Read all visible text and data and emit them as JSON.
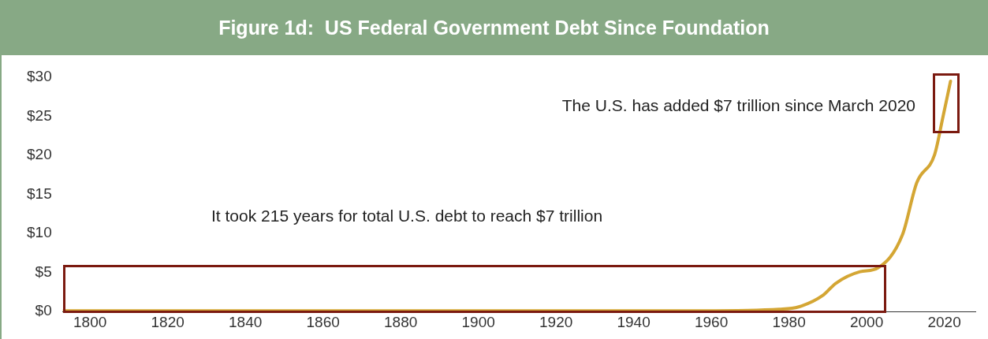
{
  "chart_data": {
    "type": "line",
    "title": "Figure 1d:  US Federal Government Debt Since Foundation",
    "x": [
      1793,
      1958,
      1977.5,
      1982.5,
      1988.8,
      1992,
      1998.3,
      2002.9,
      2009.2,
      2012.9,
      2017.5,
      2019.6,
      2021.6
    ],
    "series": [
      {
        "color": "#d4a634",
        "values": [
          0.1,
          0.1,
          0.3,
          0.6,
          2.1,
          3.6,
          5.1,
          5.6,
          9.8,
          16.5,
          20.1,
          24.8,
          29.5
        ]
      }
    ],
    "xlim": [
      1793,
      2028
    ],
    "xticks": [
      1800,
      1820,
      1840,
      1860,
      1880,
      1900,
      1920,
      1940,
      1960,
      1980,
      2000,
      2020
    ],
    "ylim": [
      0,
      30
    ],
    "yticks": [
      {
        "value": 0,
        "label": "$0"
      },
      {
        "value": 5,
        "label": "$5"
      },
      {
        "value": 10,
        "label": "$10"
      },
      {
        "value": 15,
        "label": "$15"
      },
      {
        "value": 20,
        "label": "$20"
      },
      {
        "value": 25,
        "label": "$25"
      },
      {
        "value": 30,
        "label": "$30"
      }
    ],
    "grid": false,
    "legend": false,
    "marker": "none",
    "line_style": "solid",
    "annotations": [
      "The U.S. has added $7 trillion since March 2020",
      "It took 215 years for total U.S. debt to reach $7 trillion"
    ]
  }
}
